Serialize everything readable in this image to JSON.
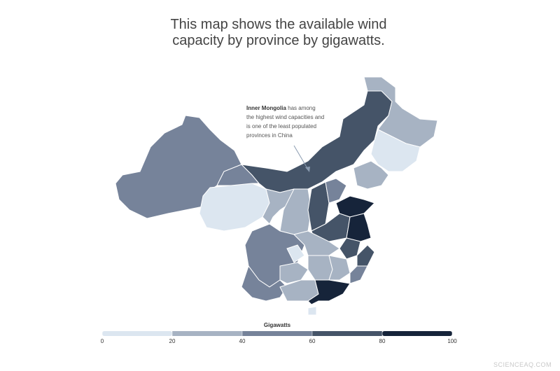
{
  "title": "This map shows the available wind capacity by province by gigawatts.",
  "annotation": {
    "highlight": "Inner Mongolia",
    "text": "has among the highest wind capacities and is one of the least populated provinces in China"
  },
  "legend": {
    "title": "Gigawatts",
    "colors": [
      "#dce6f0",
      "#a7b3c3",
      "#76839a",
      "#455468",
      "#16243a"
    ],
    "ticks": [
      0,
      20,
      40,
      60,
      80,
      100
    ]
  },
  "watermark": "SCIENCEAQ.COM"
}
